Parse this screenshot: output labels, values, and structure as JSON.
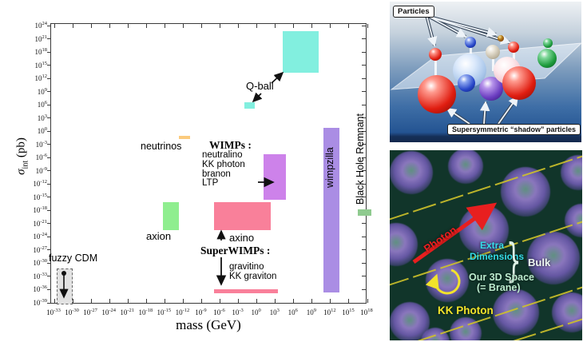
{
  "figure": {
    "x_axis_title": "mass (GeV)",
    "y_axis_title": {
      "sigma": "σ",
      "sub": "int",
      "units": " (pb)"
    },
    "labels": {
      "neutrinos": "neutrinos",
      "wimps_heading": "WIMPs :",
      "wimps_items": [
        "neutralino",
        "KK photon",
        "branon",
        "LTP"
      ],
      "qball": "Q-ball",
      "axion": "axion",
      "axino": "axino",
      "superwimps_heading": "SuperWIMPs :",
      "superwimps_items": [
        "gravitino",
        "KK graviton"
      ],
      "fuzzy_cdm": "fuzzy CDM",
      "wimpzilla": "wimpzilla",
      "bh_remnant": "Black Hole Remnant"
    },
    "chart_data": {
      "type": "region-scatter",
      "title": "Dark matter candidates: interaction strength vs mass",
      "xlabel": "mass (GeV)",
      "ylabel": "sigma_int (pb)",
      "x_scale": "log10 exponents",
      "y_scale": "log10 exponents",
      "x_tick_exponents": [
        -33,
        -30,
        -27,
        -24,
        -21,
        -18,
        -15,
        -12,
        -9,
        -6,
        -3,
        0,
        3,
        6,
        9,
        12,
        15,
        18
      ],
      "y_tick_exponents": [
        24,
        21,
        18,
        15,
        12,
        9,
        6,
        3,
        0,
        -3,
        -6,
        -9,
        -12,
        -15,
        -18,
        -21,
        -24,
        -27,
        -30,
        -33,
        -36,
        -39
      ],
      "xlim_exp": [
        -33,
        18
      ],
      "ylim_exp": [
        -39,
        24
      ],
      "regions": [
        {
          "name": "qball-large",
          "label": "Q-ball",
          "x_exp": [
            4.2,
            10.0
          ],
          "y_exp": [
            13.3,
            22.7
          ],
          "color": "#82efdf",
          "style": "solid"
        },
        {
          "name": "qball-small",
          "label": "Q-ball",
          "x_exp": [
            -2.0,
            -0.4
          ],
          "y_exp": [
            5.1,
            6.6
          ],
          "color": "#82efdf",
          "style": "solid"
        },
        {
          "name": "neutrinos",
          "label": "neutrinos",
          "x_exp": [
            -12.7,
            -10.9
          ],
          "y_exp": [
            -1.8,
            -1.0
          ],
          "color": "#fbcb7d",
          "style": "solid"
        },
        {
          "name": "wimps",
          "label": "WIMPs",
          "x_exp": [
            1.1,
            4.7
          ],
          "y_exp": [
            -15.6,
            -5.2
          ],
          "color": "#cd82ea",
          "style": "solid"
        },
        {
          "name": "axion",
          "label": "axion",
          "x_exp": [
            -15.3,
            -12.7
          ],
          "y_exp": [
            -22.5,
            -16.1
          ],
          "color": "#8fee8f",
          "style": "solid"
        },
        {
          "name": "axino",
          "label": "axino",
          "x_exp": [
            -7.0,
            2.2
          ],
          "y_exp": [
            -22.4,
            -16.1
          ],
          "color": "#f9809a",
          "style": "solid"
        },
        {
          "name": "gravitino",
          "label": "gravitino / KK graviton",
          "x_exp": [
            -7.0,
            3.4
          ],
          "y_exp": [
            -36.8,
            -35.9
          ],
          "color": "#f9809a",
          "style": "solid"
        },
        {
          "name": "wimpzilla",
          "label": "wimpzilla",
          "x_exp": [
            10.8,
            13.4
          ],
          "y_exp": [
            -36.6,
            0.8
          ],
          "color": "#aa8de4",
          "style": "solid"
        },
        {
          "name": "bh-remnant",
          "label": "Black Hole Remnant",
          "x_exp": [
            16.5,
            18.6
          ],
          "y_exp": [
            -19.2,
            -17.7
          ],
          "color": "#8fca8f",
          "style": "solid"
        },
        {
          "name": "fuzzy-cdm-box",
          "label": "fuzzy CDM",
          "x_exp": [
            -32.6,
            -30.0
          ],
          "y_exp": [
            -39.3,
            -31.2
          ],
          "color": "#e2e2e2",
          "style": "dashed"
        }
      ]
    }
  },
  "susy_panel": {
    "particles_label": "Particles",
    "shadow_label": "Supersymmetric “shadow” particles"
  },
  "brane_panel": {
    "photon": "Photon",
    "kk_photon": "KK Photon",
    "extra_dimensions_line1": "Extra",
    "extra_dimensions_line2": "Dimensions",
    "bulk": "Bulk",
    "bracket": "}",
    "our_space_line1": "Our 3D Space",
    "our_space_line2": "(= Brane)"
  }
}
